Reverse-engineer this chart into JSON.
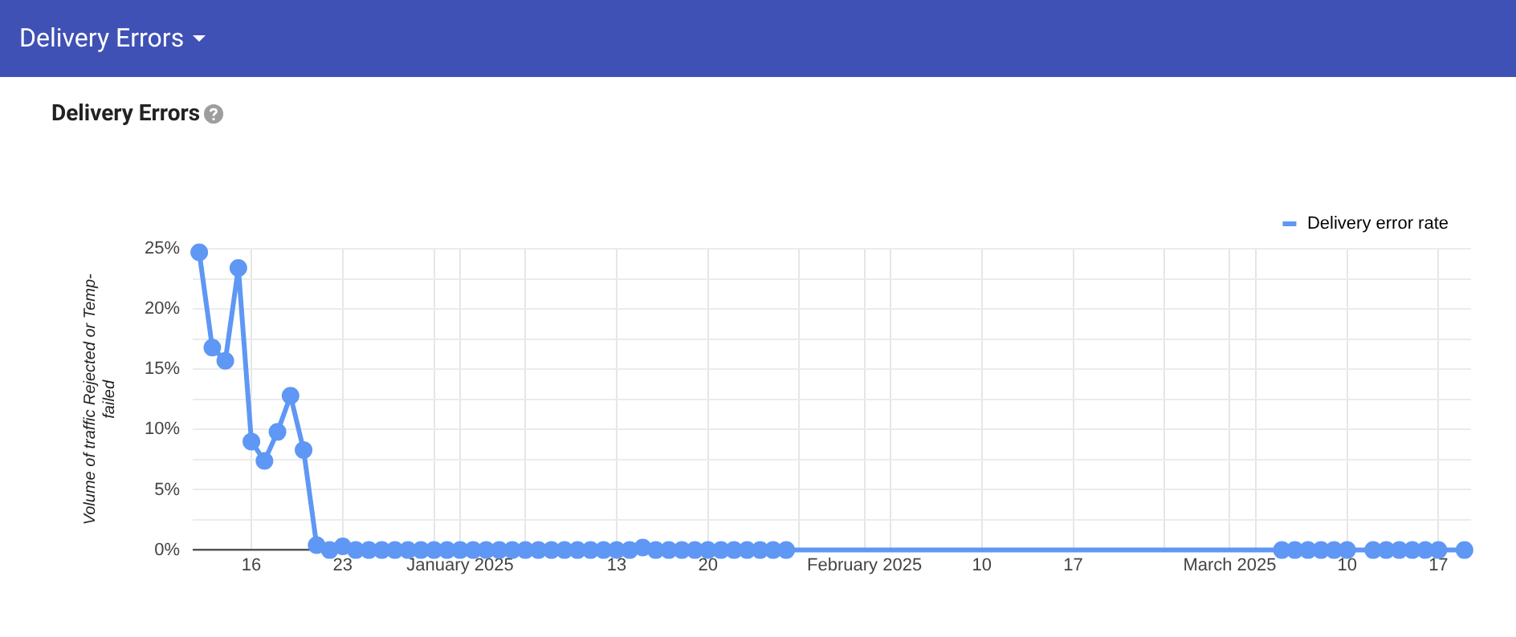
{
  "chart_data": {
    "type": "line",
    "title": "Delivery Errors",
    "ylabel": "Volume of traffic Rejected or Temp-failed",
    "annotations": [
      "Delivery Errors"
    ],
    "x": [
      "2024-12-12",
      "2024-12-13",
      "2024-12-14",
      "2024-12-15",
      "2024-12-16",
      "2024-12-17",
      "2024-12-18",
      "2024-12-19",
      "2024-12-20",
      "2024-12-21",
      "2024-12-22",
      "2024-12-23",
      "2024-12-24",
      "2024-12-25",
      "2024-12-26",
      "2024-12-27",
      "2024-12-28",
      "2024-12-29",
      "2024-12-30",
      "2024-12-31",
      "2025-01-01",
      "2025-01-02",
      "2025-01-03",
      "2025-01-04",
      "2025-01-05",
      "2025-01-06",
      "2025-01-07",
      "2025-01-08",
      "2025-01-09",
      "2025-01-10",
      "2025-01-11",
      "2025-01-12",
      "2025-01-13",
      "2025-01-14",
      "2025-01-15",
      "2025-01-16",
      "2025-01-17",
      "2025-01-18",
      "2025-01-19",
      "2025-01-20",
      "2025-01-21",
      "2025-01-22",
      "2025-01-23",
      "2025-01-24",
      "2025-01-25",
      "2025-01-26",
      "2025-03-05",
      "2025-03-06",
      "2025-03-07",
      "2025-03-08",
      "2025-03-09",
      "2025-03-10",
      "2025-03-12",
      "2025-03-13",
      "2025-03-14",
      "2025-03-15",
      "2025-03-16",
      "2025-03-17",
      "2025-03-19"
    ],
    "series": [
      {
        "name": "Delivery error rate",
        "color": "#5f97f4",
        "values": [
          24.7,
          16.8,
          15.7,
          23.4,
          9.0,
          7.4,
          9.8,
          12.8,
          8.3,
          0.4,
          0,
          0.3,
          0,
          0,
          0,
          0,
          0,
          0,
          0,
          0,
          0,
          0,
          0,
          0,
          0,
          0,
          0,
          0,
          0,
          0,
          0,
          0,
          0,
          0,
          0.2,
          0,
          0,
          0,
          0,
          0,
          0,
          0,
          0,
          0,
          0,
          0,
          0,
          0,
          0,
          0,
          0,
          0,
          0,
          0,
          0,
          0,
          0,
          0,
          0
        ]
      }
    ],
    "xlim": [
      "2024-12-11T12:00",
      "2025-03-19T12:00"
    ],
    "xticks": [
      {
        "value": "2024-12-16",
        "label": "16"
      },
      {
        "value": "2024-12-23",
        "label": "23"
      },
      {
        "value": "2024-12-30",
        "label": null
      },
      {
        "value": "2025-01-01",
        "label": "January 2025"
      },
      {
        "value": "2025-01-06",
        "label": null
      },
      {
        "value": "2025-01-13",
        "label": "13"
      },
      {
        "value": "2025-01-20",
        "label": "20"
      },
      {
        "value": "2025-01-27",
        "label": null
      },
      {
        "value": "2025-02-01",
        "label": "February 2025"
      },
      {
        "value": "2025-02-03",
        "label": null
      },
      {
        "value": "2025-02-10",
        "label": "10"
      },
      {
        "value": "2025-02-17",
        "label": "17"
      },
      {
        "value": "2025-02-24",
        "label": null
      },
      {
        "value": "2025-03-01",
        "label": "March 2025"
      },
      {
        "value": "2025-03-03",
        "label": null
      },
      {
        "value": "2025-03-10",
        "label": "10"
      },
      {
        "value": "2025-03-17",
        "label": "17"
      }
    ],
    "ylim": [
      0,
      25
    ],
    "yticks": [
      {
        "value": 0,
        "label": "0%"
      },
      {
        "value": 2.5,
        "label": null
      },
      {
        "value": 5,
        "label": "5%"
      },
      {
        "value": 7.5,
        "label": null
      },
      {
        "value": 10,
        "label": "10%"
      },
      {
        "value": 12.5,
        "label": null
      },
      {
        "value": 15,
        "label": "15%"
      },
      {
        "value": 17.5,
        "label": null
      },
      {
        "value": 20,
        "label": "20%"
      },
      {
        "value": 22.5,
        "label": null
      },
      {
        "value": 25,
        "label": "25%"
      }
    ],
    "grid": true,
    "legend": "top right",
    "marker": "circle",
    "line_style": "solid"
  }
}
